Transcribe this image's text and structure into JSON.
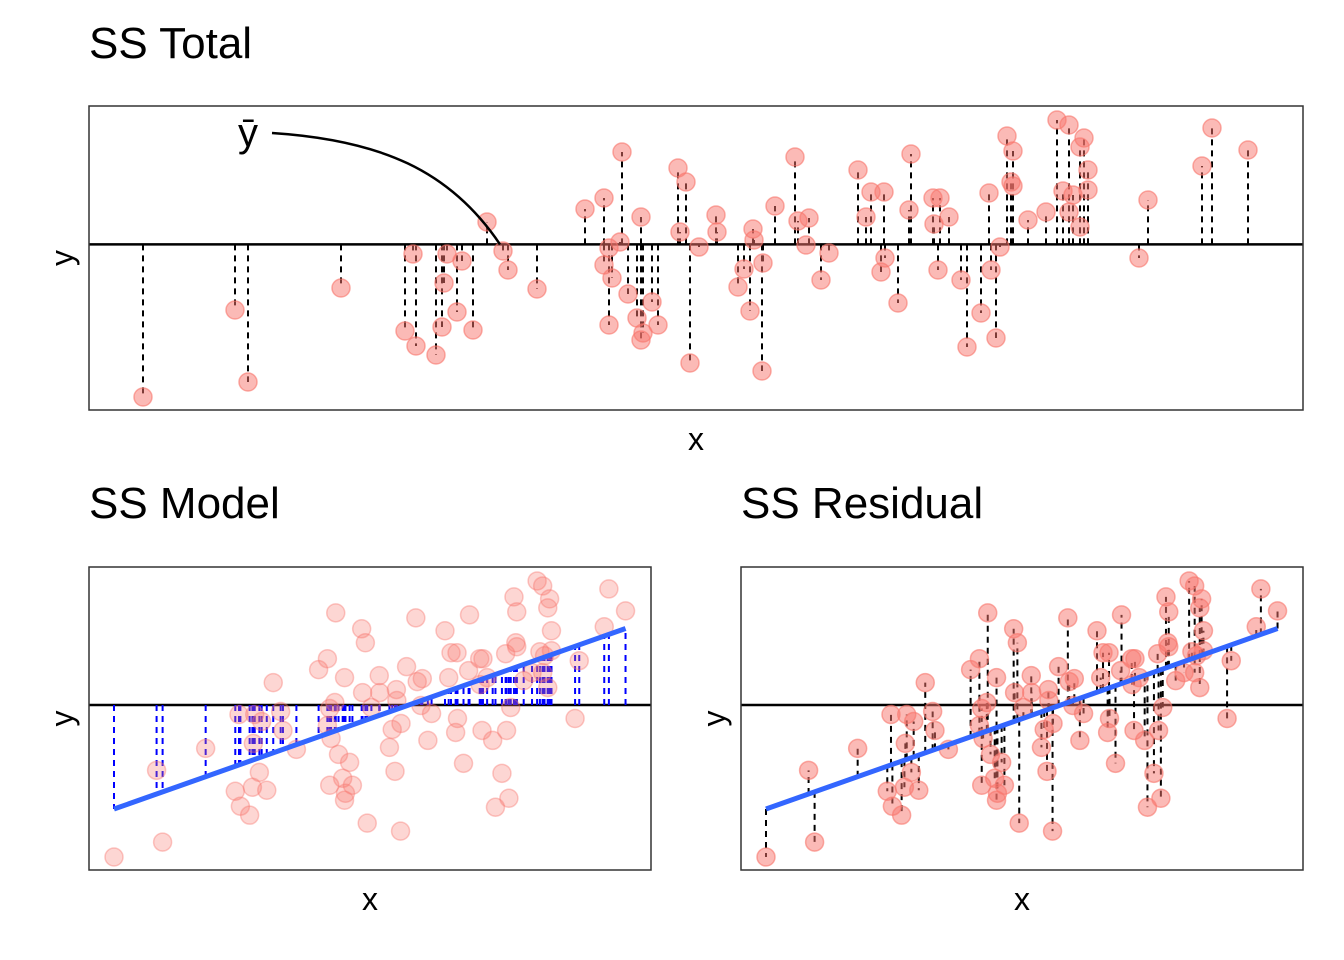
{
  "chart_data": {
    "type": "scatter",
    "panels": [
      {
        "title": "SS Total",
        "x_label": "x",
        "y_label": "y"
      },
      {
        "title": "SS Model",
        "x_label": "x",
        "y_label": "y"
      },
      {
        "title": "SS Residual",
        "x_label": "x",
        "y_label": "y"
      }
    ],
    "annotation": "ȳ",
    "x": [
      5.4,
      14.6,
      15.9,
      25.2,
      31.6,
      32.4,
      32.7,
      34.7,
      35.3,
      35.5,
      35.8,
      36.8,
      37.3,
      38.4,
      39.8,
      41.4,
      41.9,
      44.8,
      49.6,
      51.5,
      51.5,
      52,
      52,
      52.3,
      53.1,
      53.3,
      53.9,
      54.8,
      55.2,
      55.2,
      55.4,
      56.3,
      56.9,
      58.9,
      59.1,
      59.7,
      60.1,
      61,
      62.7,
      62.8,
      64.9,
      65.5,
      66.1,
      66.4,
      66.5,
      67.3,
      67.4,
      68.6,
      70.6,
      70.9,
      71.7,
      72,
      73.2,
      74,
      76.9,
      77.7,
      78.2,
      79.2,
      79.5,
      79.6,
      80.9,
      82.2,
      82,
      84.4,
      84.5,
      84.9,
      85.1,
      86,
      87.2,
      87.8,
      89.2,
      90,
      90.2,
      90.7,
      91.1,
      91.8,
      92.2,
      92.4,
      92.4,
      93.9,
      95.7,
      96.8,
      97.4,
      98,
      98,
      98.4,
      99.1,
      99.1,
      99.5,
      99.9,
      99.9,
      105,
      105.9,
      111.3,
      112.3,
      115.9
    ],
    "y": [
      -15.1,
      -6.4,
      -13.6,
      -4.2,
      -8.5,
      -0.8,
      -10,
      -10.9,
      -8.1,
      -3.7,
      -0.8,
      -6.6,
      -1.5,
      -8.4,
      2.4,
      -0.5,
      -2.4,
      -4.3,
      3.7,
      4.8,
      -1.9,
      -7.9,
      -0.2,
      -3.2,
      0.4,
      9.4,
      -4.8,
      -7.2,
      2.9,
      -9.4,
      -8.7,
      -5.6,
      -7.9,
      7.8,
      1.4,
      6.4,
      -11.7,
      -0.1,
      3.1,
      1.4,
      -4.1,
      -2.3,
      -6.5,
      1.7,
      0.6,
      -12.5,
      -1.7,
      4,
      8.9,
      2.5,
      0.1,
      2.8,
      -3.4,
      -0.7,
      7.6,
      2.9,
      5.4,
      -2.6,
      5.4,
      -1.2,
      -5.7,
      9.2,
      3.6,
      4.8,
      2.2,
      -2.4,
      4.8,
      2.9,
      -3.4,
      -10.1,
      -6.7,
      5.3,
      -2.4,
      -9.2,
      -0.1,
      11,
      6.4,
      9.5,
      6,
      2.6,
      3.4,
      12.6,
      5.5,
      12.1,
      3.4,
      5.1,
      9.9,
      1.9,
      10.8,
      7.6,
      5.6,
      -1.2,
      4.6,
      8,
      11.8,
      9.6
    ],
    "xlim": [
      0,
      121.4
    ],
    "ylim": [
      -16.4,
      14
    ],
    "color": "#f8766d",
    "fit_color": "#3366ff",
    "model_color": "#0000ff",
    "residual_color": "#000000"
  }
}
